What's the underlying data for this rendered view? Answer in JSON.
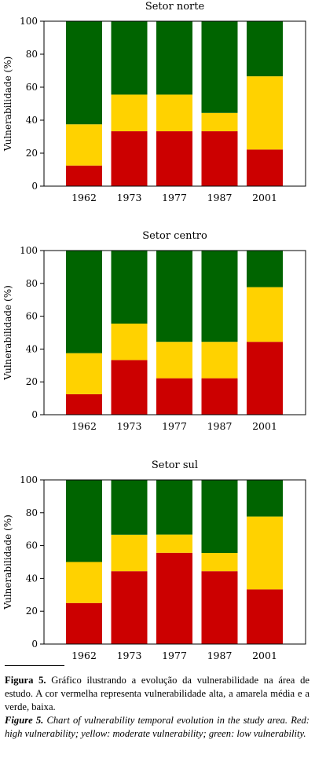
{
  "colors": {
    "high": "#CC0000",
    "moderate": "#FFD200",
    "low": "#006400"
  },
  "chart_data": [
    {
      "type": "bar",
      "stacked": true,
      "title": "Setor norte",
      "ylabel": "Vulnerabilidade (%)",
      "ylim": [
        0,
        100
      ],
      "yticks": [
        0,
        20,
        40,
        60,
        80,
        100
      ],
      "categories": [
        "1962",
        "1973",
        "1977",
        "1987",
        "2001"
      ],
      "series": [
        {
          "color": "#CC0000",
          "values": [
            12.5,
            33.3,
            33.3,
            33.3,
            22.2
          ]
        },
        {
          "color": "#FFD200",
          "values": [
            25,
            22.2,
            22.2,
            11.1,
            44.4
          ]
        },
        {
          "color": "#006400",
          "values": [
            62.5,
            44.5,
            44.5,
            55.6,
            33.4
          ]
        }
      ]
    },
    {
      "type": "bar",
      "stacked": true,
      "title": "Setor centro",
      "ylabel": "Vulnerabilidade (%)",
      "ylim": [
        0,
        100
      ],
      "yticks": [
        0,
        20,
        40,
        60,
        80,
        100
      ],
      "categories": [
        "1962",
        "1973",
        "1977",
        "1987",
        "2001"
      ],
      "series": [
        {
          "color": "#CC0000",
          "values": [
            12.5,
            33.3,
            22.2,
            22.2,
            44.4
          ]
        },
        {
          "color": "#FFD200",
          "values": [
            25,
            22.2,
            22.2,
            22.2,
            33.3
          ]
        },
        {
          "color": "#006400",
          "values": [
            62.5,
            44.5,
            55.6,
            55.6,
            22.3
          ]
        }
      ]
    },
    {
      "type": "bar",
      "stacked": true,
      "title": "Setor sul",
      "ylabel": "Vulnerabilidade (%)",
      "ylim": [
        0,
        100
      ],
      "yticks": [
        0,
        20,
        40,
        60,
        80,
        100
      ],
      "categories": [
        "1962",
        "1973",
        "1977",
        "1987",
        "2001"
      ],
      "series": [
        {
          "color": "#CC0000",
          "values": [
            25,
            44.4,
            55.6,
            44.4,
            33.3
          ]
        },
        {
          "color": "#FFD200",
          "values": [
            25,
            22.2,
            11.1,
            11.1,
            44.4
          ]
        },
        {
          "color": "#006400",
          "values": [
            50,
            33.4,
            33.3,
            44.5,
            22.3
          ]
        }
      ]
    }
  ],
  "caption": {
    "pt_label": "Figura 5.",
    "pt_text": "Gráfico ilustrando a evolução da vulnerabilidade na área de estudo. A cor vermelha representa vulnerabilidade alta, a amarela média e a verde, baixa.",
    "en_label": "Figure 5.",
    "en_text": "Chart of vulnerability temporal evolution in the study area. Red: high vulnerability; yellow: moderate vulnerability; green: low vulnerability."
  }
}
